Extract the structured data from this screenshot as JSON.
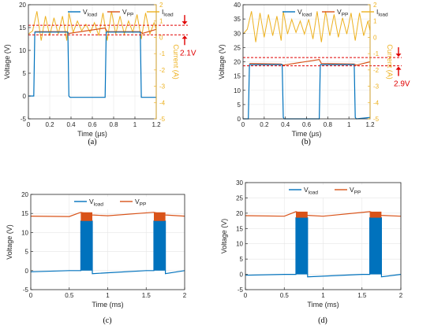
{
  "colors": {
    "v_load": "#0072bd",
    "v_pp": "#d95319",
    "i_load": "#edb120",
    "annotation": "#e00000",
    "axis": "#262626",
    "grid": "#e6e6e6"
  },
  "chart_data": [
    {
      "panel": "a",
      "caption": "(a)",
      "type": "line",
      "xlabel": "Time (μs)",
      "ylabel": "Voltage (V)",
      "y2label": "Current (A)",
      "xlim": [
        0,
        1.2
      ],
      "ylim": [
        -5,
        20
      ],
      "y2lim": [
        -5,
        2
      ],
      "xticks": [
        "0",
        "0.2",
        "0.4",
        "0.6",
        "0.8",
        "1",
        "1.2"
      ],
      "yticks": [
        "-5",
        "0",
        "5",
        "10",
        "15",
        "20"
      ],
      "y2ticks": [
        "-5",
        "-4",
        "-3",
        "-2",
        "-1",
        "0",
        "1",
        "2"
      ],
      "legend": [
        "V_load",
        "V_PP",
        "I_load"
      ],
      "annotation": "2.1V",
      "dashed_levels": [
        15.5,
        13.4
      ],
      "series": [
        {
          "name": "V_load",
          "x": [
            0,
            0.05,
            0.06,
            0.07,
            0.35,
            0.37,
            0.38,
            0.39,
            0.72,
            0.73,
            0.74,
            1.05,
            1.06,
            1.07,
            1.2
          ],
          "y": [
            0,
            0,
            14,
            14,
            14,
            14,
            0,
            -0.3,
            -0.3,
            14,
            14,
            14,
            -0.3,
            -0.3,
            -0.3
          ]
        },
        {
          "name": "V_PP",
          "x": [
            0.06,
            0.36,
            0.38,
            0.72,
            0.74,
            1.05,
            1.07,
            1.2
          ],
          "y": [
            14.1,
            14.1,
            13.7,
            14.9,
            14.1,
            14.1,
            13.7,
            14.6
          ]
        },
        {
          "name": "I_load",
          "x": [
            0,
            0.04,
            0.08,
            0.12,
            0.16,
            0.2,
            0.24,
            0.28,
            0.32,
            0.36,
            0.38,
            0.42,
            0.46,
            0.5,
            0.54,
            0.58,
            0.62,
            0.66,
            0.7,
            0.74,
            0.78,
            0.82,
            0.86,
            0.9,
            0.94,
            0.98,
            1.02,
            1.06,
            1.1,
            1.14,
            1.18,
            1.2
          ],
          "y": [
            0.2,
            0.4,
            1.6,
            -0.2,
            1.3,
            0.1,
            1.2,
            0.2,
            1.3,
            -0.2,
            1.5,
            0.3,
            1.0,
            0.4,
            0.8,
            0.3,
            0.9,
            0.1,
            1.5,
            -0.2,
            1.6,
            0.2,
            1.3,
            0.2,
            1.0,
            0.3,
            1.4,
            -0.1,
            1.5,
            0.2,
            0.9,
            0.5
          ]
        }
      ]
    },
    {
      "panel": "b",
      "caption": "(b)",
      "type": "line",
      "xlabel": "Time (μs)",
      "ylabel": "Voltage (V)",
      "y2label": "Current (A)",
      "xlim": [
        0,
        1.2
      ],
      "ylim": [
        0,
        40
      ],
      "y2lim": [
        -5,
        2
      ],
      "xticks": [
        "0",
        "0.2",
        "0.4",
        "0.6",
        "0.8",
        "1",
        "1.2"
      ],
      "yticks": [
        "0",
        "5",
        "10",
        "15",
        "20",
        "25",
        "30",
        "35",
        "40"
      ],
      "y2ticks": [
        "-5",
        "-4",
        "-3",
        "-2",
        "-1",
        "0",
        "1",
        "2"
      ],
      "legend": [
        "V_load",
        "V_PP",
        "I_load"
      ],
      "annotation": "2.9V",
      "dashed_levels": [
        21.5,
        18.6
      ],
      "series": [
        {
          "name": "V_load",
          "x": [
            0,
            0.05,
            0.06,
            0.07,
            0.37,
            0.38,
            0.39,
            0.72,
            0.73,
            0.74,
            1.05,
            1.06,
            1.07,
            1.2
          ],
          "y": [
            0,
            0,
            19,
            19,
            19,
            0.5,
            0,
            0,
            19,
            19,
            19,
            0.5,
            0,
            0.5
          ]
        },
        {
          "name": "V_PP",
          "x": [
            0.06,
            0.36,
            0.38,
            0.72,
            0.74,
            1.05,
            1.07,
            1.2
          ],
          "y": [
            19.4,
            19.2,
            18.8,
            20.8,
            19.4,
            19.2,
            18.8,
            20.0
          ]
        },
        {
          "name": "I_load",
          "x": [
            0,
            0.04,
            0.08,
            0.12,
            0.16,
            0.2,
            0.24,
            0.28,
            0.32,
            0.36,
            0.38,
            0.42,
            0.46,
            0.5,
            0.54,
            0.58,
            0.62,
            0.66,
            0.7,
            0.74,
            0.78,
            0.82,
            0.86,
            0.9,
            0.94,
            0.98,
            1.02,
            1.06,
            1.1,
            1.14,
            1.18,
            1.2
          ],
          "y": [
            0.2,
            0.5,
            1.6,
            -0.3,
            1.5,
            0.0,
            1.4,
            0.1,
            1.3,
            -0.2,
            1.6,
            0.2,
            1.1,
            0.3,
            1.0,
            0.2,
            1.1,
            -0.1,
            1.6,
            -0.3,
            1.6,
            0.1,
            1.4,
            0.0,
            1.2,
            0.2,
            1.5,
            -0.2,
            1.5,
            0.1,
            1.0,
            0.4
          ]
        }
      ]
    },
    {
      "panel": "c",
      "caption": "(c)",
      "type": "line",
      "xlabel": "Time (ms)",
      "ylabel": "Voltage (V)",
      "xlim": [
        0,
        2
      ],
      "ylim": [
        -5,
        20
      ],
      "xticks": [
        "0",
        "0.5",
        "1",
        "1.5",
        "2"
      ],
      "yticks": [
        "-5",
        "0",
        "5",
        "10",
        "15",
        "20"
      ],
      "legend": [
        "V_load",
        "V_PP"
      ],
      "series": [
        {
          "name": "V_load",
          "x": [
            0,
            0.5,
            0.65,
            0.65,
            0.8,
            0.8,
            1.5,
            1.6,
            1.6,
            1.75,
            1.75,
            2.0
          ],
          "y": [
            -0.3,
            0,
            0,
            13,
            13,
            -0.8,
            0,
            0,
            13,
            13,
            -0.8,
            0
          ]
        },
        {
          "name": "V_PP",
          "x": [
            0,
            0.5,
            0.65,
            0.8,
            1.0,
            1.6,
            1.75,
            2.0
          ],
          "y": [
            14.3,
            14.2,
            15.3,
            14.6,
            14.4,
            15.3,
            14.6,
            14.3
          ]
        }
      ]
    },
    {
      "panel": "d",
      "caption": "(d)",
      "type": "line",
      "xlabel": "Time (ms)",
      "ylabel": "Voltage (V)",
      "xlim": [
        0,
        2
      ],
      "ylim": [
        -5,
        30
      ],
      "xticks": [
        "0",
        "0.5",
        "1",
        "1.5",
        "2"
      ],
      "yticks": [
        "-5",
        "0",
        "5",
        "10",
        "15",
        "20",
        "25",
        "30"
      ],
      "legend": [
        "V_load",
        "V_PP"
      ],
      "series": [
        {
          "name": "V_load",
          "x": [
            0,
            0.5,
            0.65,
            0.65,
            0.8,
            0.8,
            1.5,
            1.6,
            1.6,
            1.75,
            1.75,
            2.0
          ],
          "y": [
            -0.3,
            0,
            0,
            18.5,
            18.5,
            -0.8,
            0,
            0,
            18.5,
            18.5,
            -0.8,
            0
          ]
        },
        {
          "name": "V_PP",
          "x": [
            0,
            0.5,
            0.65,
            0.8,
            1.0,
            1.6,
            1.75,
            2.0
          ],
          "y": [
            19.2,
            19.0,
            20.5,
            19.3,
            19.0,
            20.5,
            19.3,
            19.0
          ]
        }
      ]
    }
  ]
}
